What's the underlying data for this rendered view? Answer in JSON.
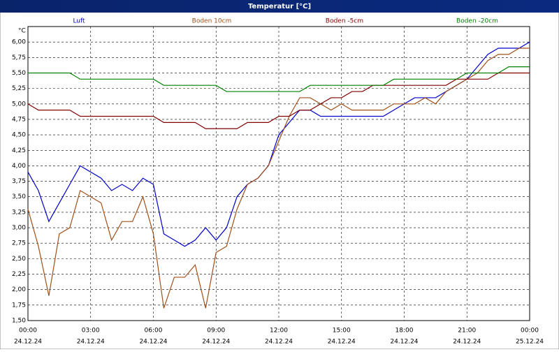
{
  "chart_data": {
    "type": "line",
    "title": "Temperatur [°C]",
    "y_unit": "°C",
    "x": [
      0,
      0.5,
      1,
      1.5,
      2,
      2.5,
      3,
      3.5,
      4,
      4.5,
      5,
      5.5,
      6,
      6.5,
      7,
      7.5,
      8,
      8.5,
      9,
      9.5,
      10,
      10.5,
      11,
      11.5,
      12,
      12.5,
      13,
      13.5,
      14,
      14.5,
      15,
      15.5,
      16,
      16.5,
      17,
      17.5,
      18,
      18.5,
      19,
      19.5,
      20,
      20.5,
      21,
      21.5,
      22,
      22.5,
      23,
      23.5,
      24
    ],
    "xlim": [
      0,
      24
    ],
    "xticks": [
      {
        "value": 0,
        "label": "00:00"
      },
      {
        "value": 3,
        "label": "03:00"
      },
      {
        "value": 6,
        "label": "06:00"
      },
      {
        "value": 9,
        "label": "09:00"
      },
      {
        "value": 12,
        "label": "12:00"
      },
      {
        "value": 15,
        "label": "15:00"
      },
      {
        "value": 18,
        "label": "18:00"
      },
      {
        "value": 21,
        "label": "21:00"
      },
      {
        "value": 24,
        "label": "00:00"
      }
    ],
    "xtick_dates": [
      "24.12.24",
      "24.12.24",
      "24.12.24",
      "24.12.24",
      "24.12.24",
      "24.12.24",
      "24.12.24",
      "24.12.24",
      "25.12.24"
    ],
    "ylim": [
      1.5,
      6.25
    ],
    "yticks": [
      {
        "value": 1.5,
        "label": "1,50"
      },
      {
        "value": 1.75,
        "label": "1,75"
      },
      {
        "value": 2,
        "label": "2,00"
      },
      {
        "value": 2.25,
        "label": "2,25"
      },
      {
        "value": 2.5,
        "label": "2,50"
      },
      {
        "value": 2.75,
        "label": "2,75"
      },
      {
        "value": 3,
        "label": "3,00"
      },
      {
        "value": 3.25,
        "label": "3,25"
      },
      {
        "value": 3.5,
        "label": "3,50"
      },
      {
        "value": 3.75,
        "label": "3,75"
      },
      {
        "value": 4,
        "label": "4,00"
      },
      {
        "value": 4.25,
        "label": "4,25"
      },
      {
        "value": 4.5,
        "label": "4,50"
      },
      {
        "value": 4.75,
        "label": "4,75"
      },
      {
        "value": 5,
        "label": "5,00"
      },
      {
        "value": 5.25,
        "label": "5,25"
      },
      {
        "value": 5.5,
        "label": "5,50"
      },
      {
        "value": 5.75,
        "label": "5,75"
      },
      {
        "value": 6,
        "label": "6,00"
      }
    ],
    "grid": true,
    "series": [
      {
        "name": "Luft",
        "color": "#0000cc",
        "values": [
          3.9,
          3.6,
          3.1,
          3.4,
          3.7,
          4.0,
          3.9,
          3.8,
          3.6,
          3.7,
          3.6,
          3.8,
          3.7,
          2.9,
          2.8,
          2.7,
          2.8,
          3.0,
          2.8,
          3.0,
          3.5,
          3.7,
          3.8,
          4.0,
          4.5,
          4.7,
          4.9,
          4.9,
          4.8,
          4.8,
          4.8,
          4.8,
          4.8,
          4.8,
          4.8,
          4.9,
          5.0,
          5.1,
          5.1,
          5.1,
          5.2,
          5.3,
          5.4,
          5.6,
          5.8,
          5.9,
          5.9,
          5.9,
          6.0
        ]
      },
      {
        "name": "Boden 10cm",
        "color": "#a0501a",
        "values": [
          3.3,
          2.7,
          1.9,
          2.9,
          3.0,
          3.6,
          3.5,
          3.4,
          2.8,
          3.1,
          3.1,
          3.5,
          2.9,
          1.7,
          2.2,
          2.2,
          2.4,
          1.7,
          2.6,
          2.7,
          3.3,
          3.7,
          3.8,
          4.0,
          4.4,
          4.8,
          5.1,
          5.1,
          5.0,
          4.9,
          5.0,
          4.9,
          4.9,
          4.9,
          4.9,
          5.0,
          5.0,
          5.0,
          5.1,
          5.0,
          5.2,
          5.3,
          5.4,
          5.5,
          5.7,
          5.8,
          5.8,
          5.9,
          5.9
        ]
      },
      {
        "name": "Boden -5cm",
        "color": "#800000",
        "values": [
          5.0,
          4.9,
          4.9,
          4.9,
          4.9,
          4.8,
          4.8,
          4.8,
          4.8,
          4.8,
          4.8,
          4.8,
          4.8,
          4.7,
          4.7,
          4.7,
          4.7,
          4.6,
          4.6,
          4.6,
          4.6,
          4.7,
          4.7,
          4.7,
          4.8,
          4.8,
          4.9,
          4.9,
          5.0,
          5.1,
          5.1,
          5.2,
          5.2,
          5.3,
          5.3,
          5.3,
          5.3,
          5.3,
          5.3,
          5.3,
          5.3,
          5.4,
          5.4,
          5.4,
          5.4,
          5.5,
          5.5,
          5.5,
          5.5
        ]
      },
      {
        "name": "Boden -20cm",
        "color": "#008000",
        "values": [
          5.5,
          5.5,
          5.5,
          5.5,
          5.5,
          5.4,
          5.4,
          5.4,
          5.4,
          5.4,
          5.4,
          5.4,
          5.4,
          5.3,
          5.3,
          5.3,
          5.3,
          5.3,
          5.3,
          5.2,
          5.2,
          5.2,
          5.2,
          5.2,
          5.2,
          5.2,
          5.2,
          5.3,
          5.3,
          5.3,
          5.3,
          5.3,
          5.3,
          5.3,
          5.3,
          5.4,
          5.4,
          5.4,
          5.4,
          5.4,
          5.4,
          5.4,
          5.5,
          5.5,
          5.5,
          5.5,
          5.6,
          5.6,
          5.6
        ]
      }
    ]
  }
}
